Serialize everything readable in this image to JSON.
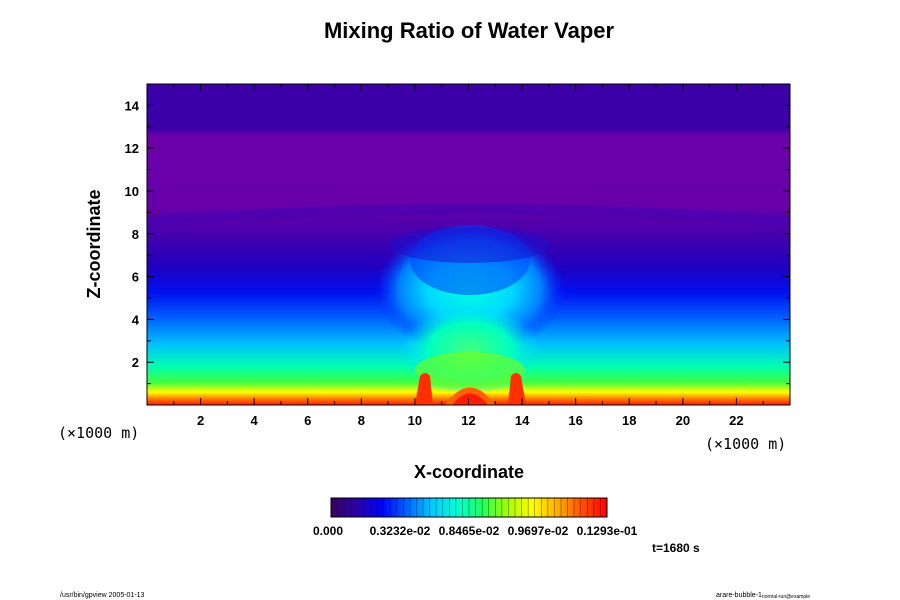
{
  "chart_data": {
    "type": "heatmap",
    "title": "Mixing Ratio of Water Vaper",
    "xlabel": "X-coordinate",
    "ylabel": "Z-coordinate",
    "x_unit": "(×1000 m)",
    "y_unit": "(×1000 m)",
    "xlim": [
      0,
      24
    ],
    "ylim": [
      0,
      15
    ],
    "x_ticks": [
      2,
      4,
      6,
      8,
      10,
      12,
      14,
      16,
      18,
      20,
      22
    ],
    "y_ticks": [
      2,
      4,
      6,
      8,
      10,
      12,
      14
    ],
    "colorbar": {
      "labels": [
        "0.000",
        "0.3232e-02",
        "0.8465e-02",
        "0.9697e-02",
        "0.1293e-01"
      ],
      "colors": [
        "#3c0060",
        "#2a00a8",
        "#0000ff",
        "#0060ff",
        "#00c8ff",
        "#00ffd8",
        "#20ff60",
        "#a0ff00",
        "#ffff00",
        "#ffb000",
        "#ff5000",
        "#ff0000"
      ]
    },
    "time_label": "t=1680 s",
    "footer_left": "/usr/bin/gpview 2005-01-13",
    "footer_right": "arare-bubble-1"
  },
  "footer_right_sub": "normal-run@example"
}
